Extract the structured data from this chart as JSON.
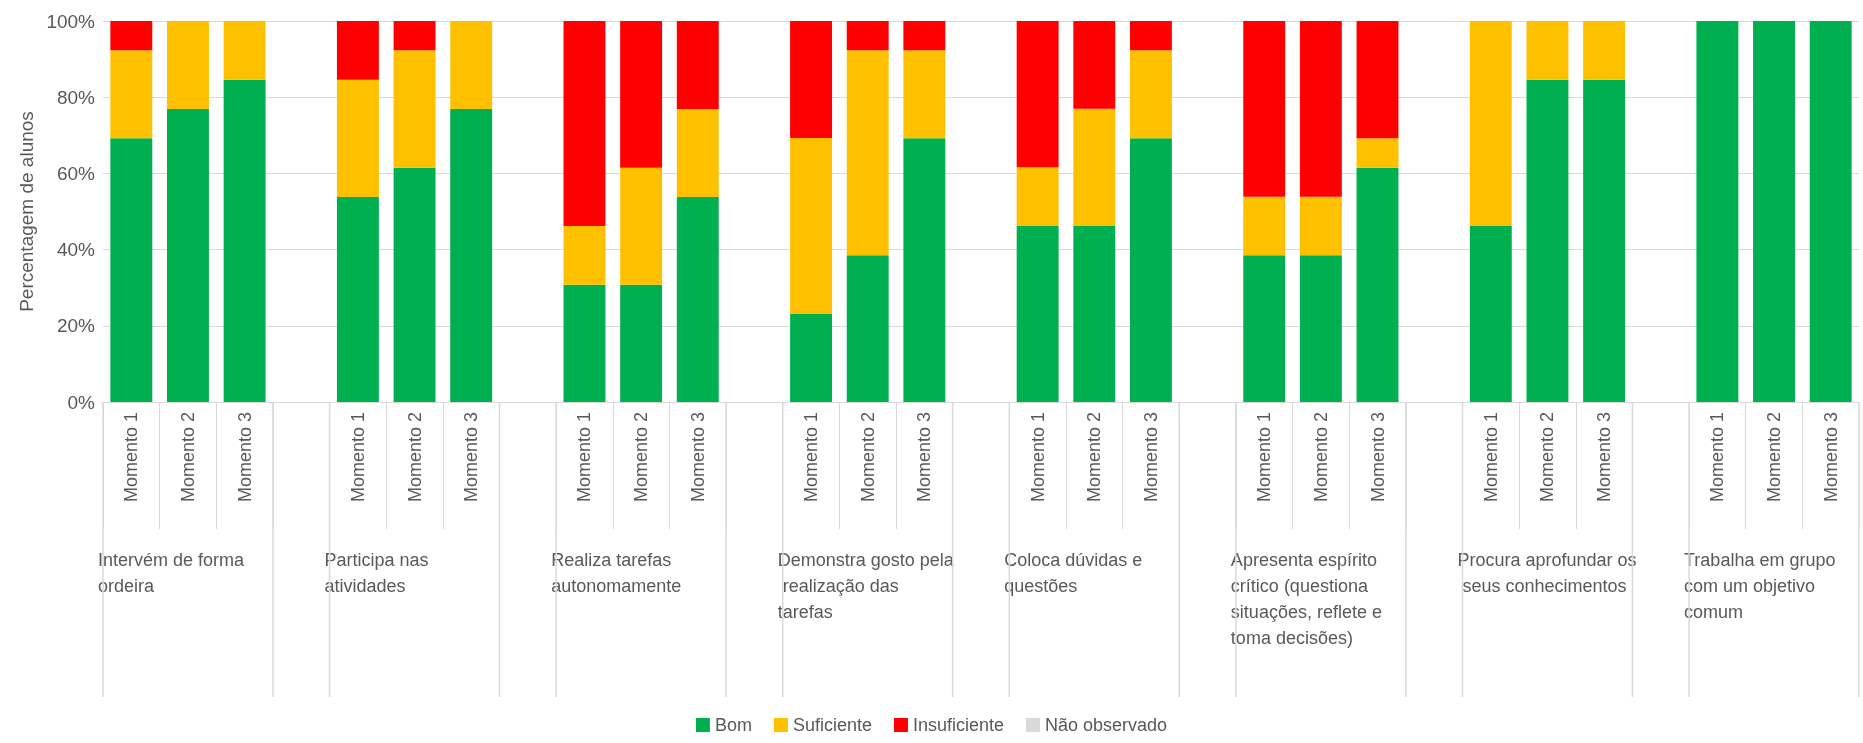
{
  "chart_data": {
    "type": "bar",
    "stacked": true,
    "ylabel": "Percentagem de alunos",
    "categories": [
      "Momento 1",
      "Momento 2",
      "Momento 3",
      null,
      "Momento 1",
      "Momento 2",
      "Momento 3",
      null,
      "Momento 1",
      "Momento 2",
      "Momento 3",
      null,
      "Momento 1",
      "Momento 2",
      "Momento 3",
      null,
      "Momento 1",
      "Momento 2",
      "Momento 3",
      null,
      "Momento 1",
      "Momento 2",
      "Momento 3",
      null,
      "Momento 1",
      "Momento 2",
      "Momento 3",
      null,
      "Momento 1",
      "Momento 2",
      "Momento 3"
    ],
    "series": [
      {
        "name": "Bom",
        "color": "#00b050",
        "values": [
          69.2,
          76.9,
          84.6,
          null,
          53.8,
          61.5,
          76.9,
          null,
          30.8,
          30.8,
          53.8,
          null,
          23.1,
          38.5,
          69.2,
          null,
          46.2,
          46.2,
          69.2,
          null,
          38.5,
          38.5,
          61.5,
          null,
          46.2,
          84.6,
          84.6,
          null,
          100,
          100,
          100
        ]
      },
      {
        "name": "Suficiente",
        "color": "#ffc000",
        "values": [
          23.1,
          23.1,
          15.4,
          null,
          30.8,
          30.8,
          23.1,
          null,
          15.4,
          30.7,
          23.1,
          null,
          46.2,
          53.8,
          23.1,
          null,
          15.4,
          30.8,
          23.1,
          null,
          15.4,
          15.4,
          7.7,
          null,
          53.8,
          15.4,
          15.4,
          null,
          0,
          0,
          0
        ]
      },
      {
        "name": "Insuficiente",
        "color": "#ff0000",
        "values": [
          7.7,
          0,
          0,
          null,
          15.4,
          7.7,
          0,
          null,
          53.8,
          38.5,
          23.1,
          null,
          30.7,
          7.7,
          7.7,
          null,
          38.4,
          23.0,
          7.7,
          null,
          46.1,
          46.1,
          30.8,
          null,
          0,
          0,
          0,
          null,
          0,
          0,
          0
        ]
      },
      {
        "name": "Não observado",
        "color": "#d9d9d9",
        "values": [
          0,
          0,
          0,
          null,
          0,
          0,
          0,
          null,
          0,
          0,
          0,
          null,
          0,
          0,
          0,
          null,
          0,
          0,
          0,
          null,
          0,
          0,
          0,
          null,
          0,
          0,
          0,
          null,
          0,
          0,
          0
        ]
      }
    ],
    "annotations": [
      "Intervém de forma ordeira",
      "Participa nas atividades",
      "Realiza tarefas autonomamente",
      "Demonstra gosto pela realização das tarefas",
      "Coloca dúvidas e questões",
      "Apresenta espírito crítico (questiona situações, reflete e toma decisões)",
      "Procura aprofundar os seus conhecimentos",
      "Trabalha em grupo com um objetivo comum"
    ],
    "ylim": [
      0,
      100
    ],
    "yticks": [
      {
        "value": 0,
        "label": "0%"
      },
      {
        "value": 20,
        "label": "20%"
      },
      {
        "value": 40,
        "label": "40%"
      },
      {
        "value": 60,
        "label": "60%"
      },
      {
        "value": 80,
        "label": "80%"
      },
      {
        "value": 100,
        "label": "100%"
      }
    ],
    "grid": "y",
    "legend": "bottom"
  }
}
